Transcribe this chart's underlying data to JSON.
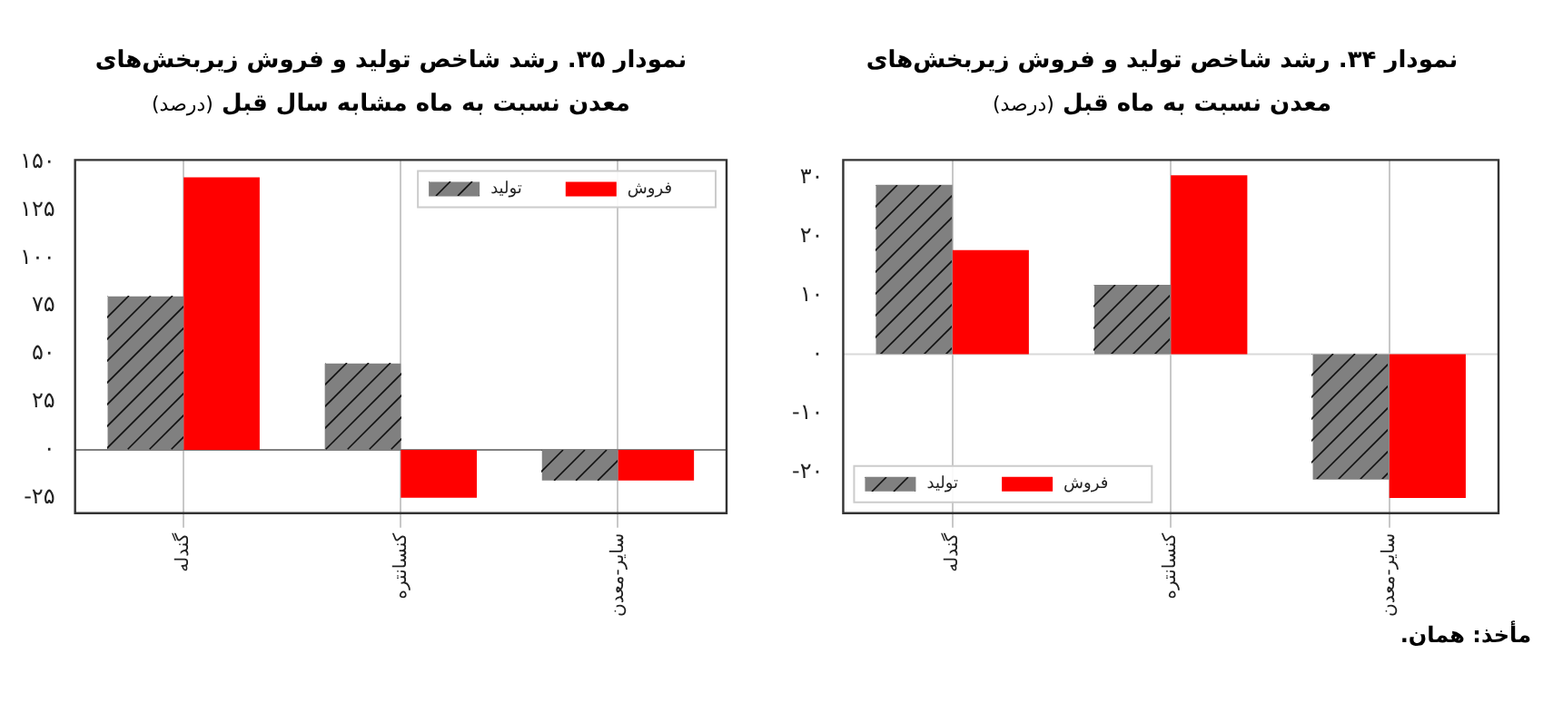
{
  "chart_data": [
    {
      "type": "bar",
      "title": "نمودار ۳۴. رشد شاخص تولید و فروش زیربخش‌های معدن نسبت به ماه قبل",
      "subtitle": "(درصد)",
      "categories": [
        "گندله",
        "کنسانتره",
        "سایر-معدن"
      ],
      "series": [
        {
          "name": "تولید",
          "color": "#808080",
          "values": [
            28.8,
            11.8,
            -21.3
          ]
        },
        {
          "name": "فروش",
          "color": "#ff0000",
          "values": [
            17.7,
            30.4,
            -24.4
          ]
        }
      ],
      "ylim": [
        -27,
        33
      ],
      "yticks": [
        {
          "value": -20,
          "label": "-۲۰"
        },
        {
          "value": -10,
          "label": "-۱۰"
        },
        {
          "value": 0,
          "label": "۰"
        },
        {
          "value": 10,
          "label": "۱۰"
        },
        {
          "value": 20,
          "label": "۲۰"
        },
        {
          "value": 30,
          "label": "۳۰"
        }
      ],
      "grid": "x",
      "legend": "bottom left",
      "ref_lines": [
        {
          "axis": "y",
          "value": 0,
          "color": "#d9d9d9"
        }
      ],
      "annotations": [
        "مأخذ: همان."
      ]
    },
    {
      "type": "bar",
      "title": "نمودار ۳۵. رشد شاخص تولید و فروش زیربخش‌های معدن نسبت به ماه مشابه سال قبل",
      "subtitle": "(درصد)",
      "categories": [
        "گندله",
        "کنسانتره",
        "سایر-معدن"
      ],
      "series": [
        {
          "name": "تولید",
          "color": "#808080",
          "values": [
            80,
            45,
            -16
          ]
        },
        {
          "name": "فروش",
          "color": "#ff0000",
          "values": [
            142,
            -25,
            -16
          ]
        }
      ],
      "ylim": [
        -33,
        151
      ],
      "yticks": [
        {
          "value": -25,
          "label": "-۲۵"
        },
        {
          "value": 0,
          "label": "۰"
        },
        {
          "value": 25,
          "label": "۲۵"
        },
        {
          "value": 50,
          "label": "۵۰"
        },
        {
          "value": 75,
          "label": "۷۵"
        },
        {
          "value": 100,
          "label": "۱۰۰"
        },
        {
          "value": 125,
          "label": "۱۲۵"
        },
        {
          "value": 150,
          "label": "۱۵۰"
        }
      ],
      "grid": "x",
      "legend": "top right",
      "ref_lines": [
        {
          "axis": "y",
          "value": 0,
          "color": "#808080"
        }
      ]
    }
  ]
}
